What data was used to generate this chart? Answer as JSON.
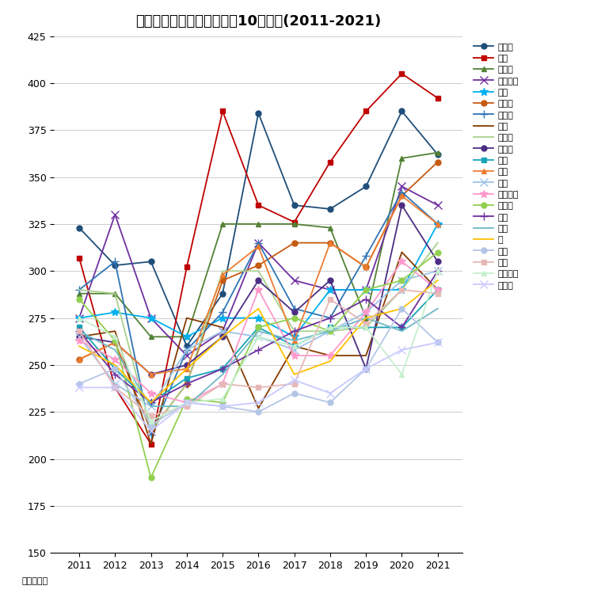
{
  "title": "目黒区　マンション坪単価10年変遷(2011-2021)",
  "ylabel_text": "単位：万円",
  "years": [
    2011,
    2012,
    2013,
    2014,
    2015,
    2016,
    2017,
    2018,
    2019,
    2020,
    2021
  ],
  "ylim": [
    150,
    425
  ],
  "yticks": [
    150,
    175,
    200,
    225,
    250,
    275,
    300,
    325,
    350,
    375,
    400,
    425
  ],
  "series": [
    {
      "name": "上目黒",
      "color": "#1f4e79",
      "marker": "o",
      "values": [
        323,
        303,
        305,
        260,
        288,
        384,
        335,
        333,
        345,
        385,
        362
      ]
    },
    {
      "name": "三田",
      "color": "#c00000",
      "marker": "s",
      "values": [
        307,
        238,
        208,
        302,
        385,
        335,
        326,
        358,
        385,
        405,
        392
      ]
    },
    {
      "name": "青葉台",
      "color": "#538135",
      "marker": "^",
      "values": [
        288,
        288,
        265,
        265,
        325,
        325,
        325,
        323,
        275,
        360,
        363
      ]
    },
    {
      "name": "自由が丘",
      "color": "#7030a0",
      "marker": "x",
      "values": [
        275,
        330,
        275,
        255,
        268,
        315,
        295,
        290,
        290,
        345,
        335
      ]
    },
    {
      "name": "東山",
      "color": "#00b0f0",
      "marker": "*",
      "values": [
        275,
        278,
        275,
        265,
        275,
        275,
        265,
        290,
        290,
        290,
        325
      ]
    },
    {
      "name": "下目黒",
      "color": "#c55a11",
      "marker": "o",
      "values": [
        253,
        262,
        215,
        240,
        295,
        303,
        315,
        315,
        302,
        340,
        358
      ]
    },
    {
      "name": "中目黒",
      "color": "#2f75b6",
      "marker": "+",
      "values": [
        290,
        305,
        213,
        258,
        278,
        315,
        280,
        275,
        308,
        342,
        325
      ]
    },
    {
      "name": "大橋",
      "color": "#843c00",
      "marker": "None",
      "values": [
        265,
        268,
        208,
        275,
        270,
        227,
        260,
        255,
        255,
        310,
        290
      ]
    },
    {
      "name": "碑文谷",
      "color": "#a9d18e",
      "marker": "None",
      "values": [
        290,
        288,
        215,
        240,
        300,
        300,
        268,
        268,
        270,
        290,
        315
      ]
    },
    {
      "name": "五本木",
      "color": "#4b2d83",
      "marker": "o",
      "values": [
        265,
        262,
        245,
        250,
        265,
        295,
        278,
        295,
        248,
        335,
        305
      ]
    },
    {
      "name": "中町",
      "color": "#17a3b8",
      "marker": "s",
      "values": [
        270,
        248,
        230,
        243,
        248,
        270,
        260,
        270,
        270,
        270,
        290
      ]
    },
    {
      "name": "目黒",
      "color": "#ed7d31",
      "marker": "^",
      "values": [
        253,
        262,
        245,
        248,
        298,
        313,
        263,
        315,
        302,
        340,
        325
      ]
    },
    {
      "name": "平町",
      "color": "#9dc3e6",
      "marker": "x",
      "values": [
        265,
        240,
        228,
        258,
        268,
        265,
        258,
        268,
        278,
        295,
        300
      ]
    },
    {
      "name": "目黒本町",
      "color": "#ff99cc",
      "marker": "*",
      "values": [
        263,
        253,
        235,
        230,
        240,
        290,
        255,
        255,
        278,
        305,
        290
      ]
    },
    {
      "name": "中央町",
      "color": "#92d050",
      "marker": "o",
      "values": [
        285,
        263,
        190,
        232,
        230,
        270,
        275,
        268,
        290,
        295,
        310
      ]
    },
    {
      "name": "鷹番",
      "color": "#7030a0",
      "marker": "+",
      "values": [
        268,
        245,
        230,
        240,
        248,
        258,
        268,
        275,
        285,
        270,
        300
      ]
    },
    {
      "name": "中根",
      "color": "#70b8c8",
      "marker": "None",
      "values": [
        268,
        258,
        228,
        228,
        245,
        268,
        263,
        268,
        275,
        268,
        280
      ]
    },
    {
      "name": "南",
      "color": "#ffc000",
      "marker": "None",
      "values": [
        260,
        250,
        230,
        248,
        265,
        280,
        245,
        252,
        275,
        280,
        295
      ]
    },
    {
      "name": "駒場",
      "color": "#b4c6e7",
      "marker": "o",
      "values": [
        240,
        248,
        218,
        230,
        228,
        225,
        235,
        230,
        248,
        280,
        262
      ]
    },
    {
      "name": "八雲",
      "color": "#e6b8b7",
      "marker": "s",
      "values": [
        268,
        238,
        223,
        228,
        240,
        238,
        240,
        285,
        272,
        290,
        288
      ]
    },
    {
      "name": "柿の木坂",
      "color": "#c6efce",
      "marker": "^",
      "values": [
        275,
        265,
        220,
        230,
        232,
        265,
        260,
        270,
        270,
        245,
        300
      ]
    },
    {
      "name": "大岡山",
      "color": "#c9c9ff",
      "marker": "x",
      "values": [
        238,
        238,
        215,
        230,
        228,
        230,
        242,
        235,
        248,
        258,
        262
      ]
    }
  ]
}
